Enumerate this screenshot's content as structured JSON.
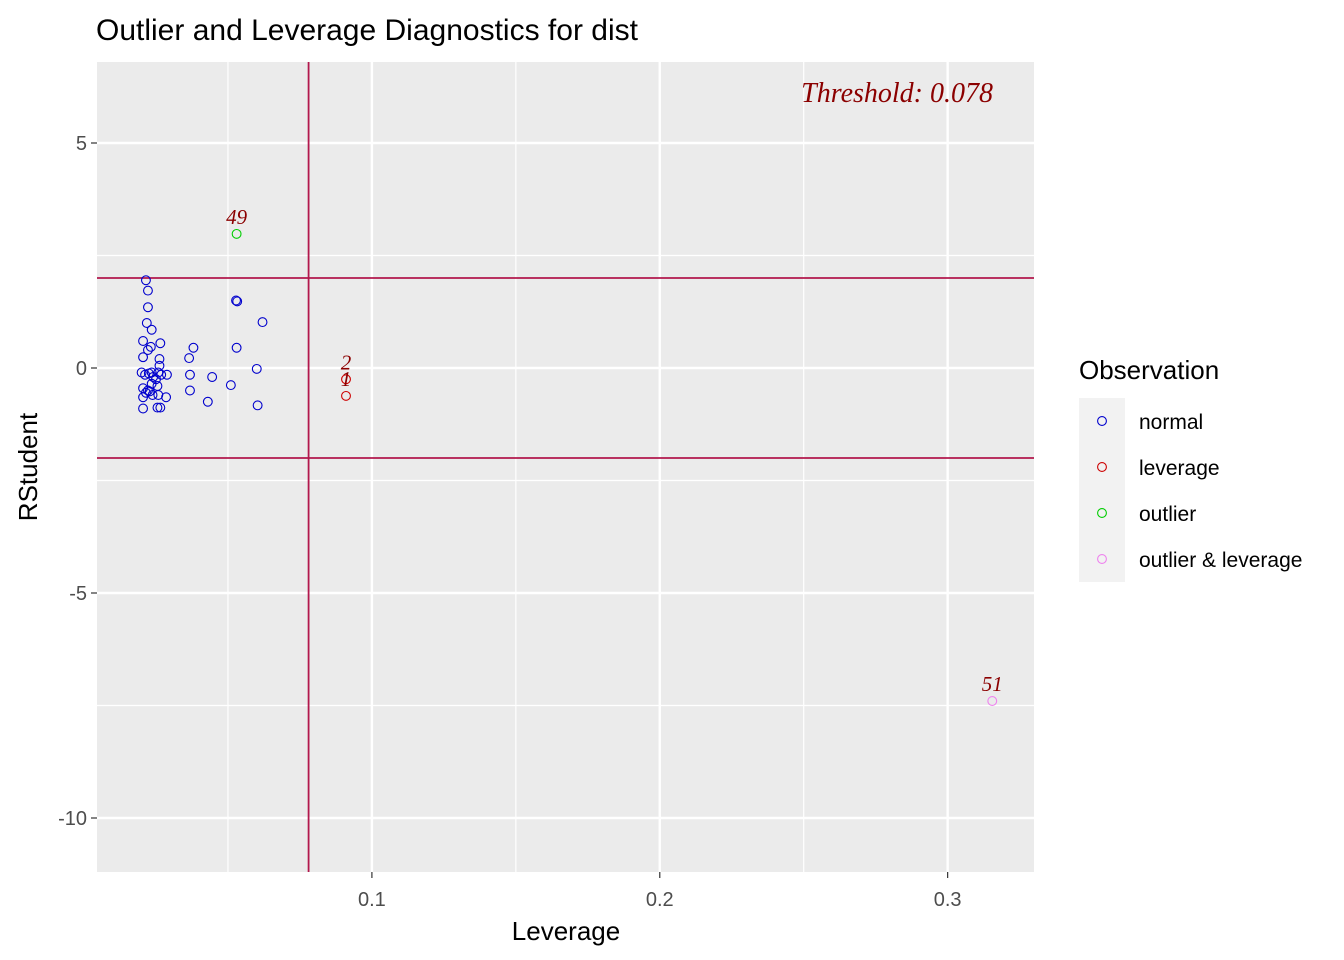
{
  "chart_data": {
    "type": "scatter",
    "title": "Outlier and Leverage Diagnostics for dist",
    "xlabel": "Leverage",
    "ylabel": "RStudent",
    "xlim": [
      0.0045,
      0.33
    ],
    "ylim": [
      -11.2,
      6.8
    ],
    "x_ticks": [
      0.1,
      0.2,
      0.3
    ],
    "x_tick_labels": [
      "0.1",
      "0.2",
      "0.3"
    ],
    "y_ticks": [
      -10,
      -5,
      0,
      5
    ],
    "y_tick_labels": [
      "-10",
      "-5",
      "0",
      "5"
    ],
    "grid": true,
    "threshold_label": "Threshold: 0.078",
    "threshold_x": 0.078,
    "rstudent_lines": [
      -2,
      2
    ],
    "line_color": "#b2184d",
    "legend": {
      "title": "Observation",
      "placement": "right",
      "entries": [
        {
          "label": "normal",
          "color": "#0000cd"
        },
        {
          "label": "leverage",
          "color": "#cd0000"
        },
        {
          "label": "outlier",
          "color": "#00cd00"
        },
        {
          "label": "outlier & leverage",
          "color": "#ee82ee"
        }
      ]
    },
    "series": [
      {
        "group": "normal",
        "color": "#0000cd",
        "points": [
          [
            0.0215,
            1.95
          ],
          [
            0.0222,
            1.72
          ],
          [
            0.0222,
            1.35
          ],
          [
            0.0218,
            1.0
          ],
          [
            0.0235,
            0.85
          ],
          [
            0.0205,
            0.6
          ],
          [
            0.0232,
            0.47
          ],
          [
            0.0222,
            0.4
          ],
          [
            0.0205,
            0.24
          ],
          [
            0.0265,
            0.55
          ],
          [
            0.0262,
            0.2
          ],
          [
            0.0262,
            0.05
          ],
          [
            0.02,
            -0.1
          ],
          [
            0.0212,
            -0.15
          ],
          [
            0.0225,
            -0.12
          ],
          [
            0.0235,
            -0.1
          ],
          [
            0.024,
            -0.2
          ],
          [
            0.025,
            -0.25
          ],
          [
            0.0258,
            -0.1
          ],
          [
            0.0268,
            -0.15
          ],
          [
            0.0288,
            -0.15
          ],
          [
            0.0205,
            -0.45
          ],
          [
            0.0215,
            -0.55
          ],
          [
            0.0222,
            -0.5
          ],
          [
            0.0228,
            -0.52
          ],
          [
            0.0235,
            -0.35
          ],
          [
            0.0255,
            -0.4
          ],
          [
            0.0238,
            -0.6
          ],
          [
            0.0205,
            -0.65
          ],
          [
            0.0258,
            -0.6
          ],
          [
            0.0285,
            -0.65
          ],
          [
            0.0255,
            -0.88
          ],
          [
            0.0265,
            -0.88
          ],
          [
            0.0205,
            -0.9
          ],
          [
            0.0365,
            0.22
          ],
          [
            0.038,
            0.45
          ],
          [
            0.0368,
            -0.15
          ],
          [
            0.0368,
            -0.5
          ],
          [
            0.043,
            -0.75
          ],
          [
            0.0445,
            -0.2
          ],
          [
            0.051,
            -0.38
          ],
          [
            0.053,
            0.45
          ],
          [
            0.0528,
            1.5
          ],
          [
            0.0532,
            1.48
          ],
          [
            0.062,
            1.02
          ],
          [
            0.06,
            -0.02
          ],
          [
            0.0603,
            -0.83
          ]
        ]
      },
      {
        "group": "leverage",
        "color": "#cd0000",
        "points": [
          [
            0.091,
            -0.25
          ],
          [
            0.091,
            -0.62
          ]
        ]
      },
      {
        "group": "outlier",
        "color": "#00cd00",
        "points": [
          [
            0.053,
            2.98
          ]
        ]
      },
      {
        "group": "outlier & leverage",
        "color": "#ee82ee",
        "points": [
          [
            0.3155,
            -7.4
          ]
        ]
      }
    ],
    "point_labels": [
      {
        "text": "49",
        "x": 0.053,
        "y": 2.98
      },
      {
        "text": "2",
        "x": 0.091,
        "y": -0.25
      },
      {
        "text": "1",
        "x": 0.091,
        "y": -0.62
      },
      {
        "text": "51",
        "x": 0.3155,
        "y": -7.4
      }
    ]
  }
}
